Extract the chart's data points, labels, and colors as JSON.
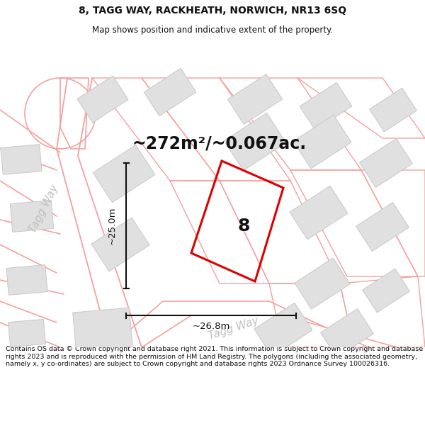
{
  "title": "8, TAGG WAY, RACKHEATH, NORWICH, NR13 6SQ",
  "subtitle": "Map shows position and indicative extent of the property.",
  "area_label": "~272m²/~0.067ac.",
  "number_label": "8",
  "width_label": "~26.8m",
  "height_label": "~25.0m",
  "road_label_upper": "Tagg Way",
  "road_label_lower": "Tagg Way",
  "footer": "Contains OS data © Crown copyright and database right 2021. This information is subject to Crown copyright and database rights 2023 and is reproduced with the permission of HM Land Registry. The polygons (including the associated geometry, namely x, y co-ordinates) are subject to Crown copyright and database rights 2023 Ordnance Survey 100026316.",
  "bg_color": "#ffffff",
  "map_bg": "#ffffff",
  "building_fill": "#e0e0e0",
  "building_edge": "#c8c8c8",
  "road_color": "#f5a0a0",
  "highlight_color": "#dd0000",
  "dim_color": "#111111",
  "text_color": "#111111",
  "road_text_color": "#c0c0c0",
  "title_fontsize": 10,
  "subtitle_fontsize": 8.5,
  "area_fontsize": 17,
  "number_fontsize": 18,
  "dim_fontsize": 9.5,
  "road_fontsize": 11,
  "footer_fontsize": 6.8,
  "fig_width": 6.0,
  "fig_height": 6.25,
  "dpi": 100
}
